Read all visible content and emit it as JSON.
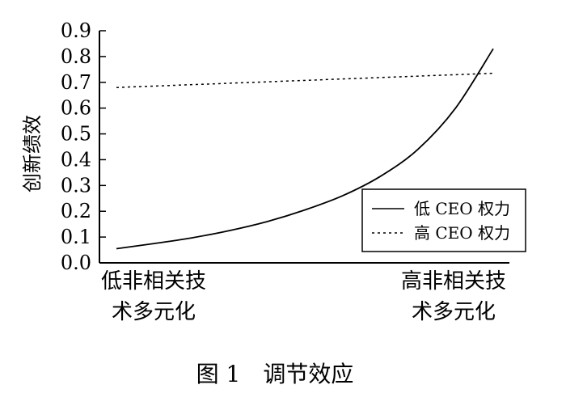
{
  "chart_data": {
    "type": "line",
    "title": "",
    "caption": "图 1　调节效应",
    "ylabel": "创新绩效",
    "xlabel": "",
    "ylim": [
      0,
      0.9
    ],
    "y_ticks": [
      "0.0",
      "0.1",
      "0.2",
      "0.3",
      "0.4",
      "0.5",
      "0.6",
      "0.7",
      "0.8",
      "0.9"
    ],
    "x_categories": [
      {
        "line1": "低非相关技",
        "line2": "术多元化"
      },
      {
        "line1": "高非相关技",
        "line2": "术多元化"
      }
    ],
    "legend_position": "bottom-right",
    "series": [
      {
        "name": "低 CEO 权力",
        "style": "solid",
        "x": [
          0,
          0.1,
          0.2,
          0.3,
          0.4,
          0.5,
          0.6,
          0.7,
          0.8,
          0.9,
          1.0
        ],
        "y": [
          0.055,
          0.075,
          0.097,
          0.125,
          0.16,
          0.205,
          0.26,
          0.335,
          0.44,
          0.6,
          0.83
        ]
      },
      {
        "name": "高 CEO 权力",
        "style": "dashed",
        "x": [
          0,
          1.0
        ],
        "y": [
          0.68,
          0.735
        ]
      }
    ]
  }
}
